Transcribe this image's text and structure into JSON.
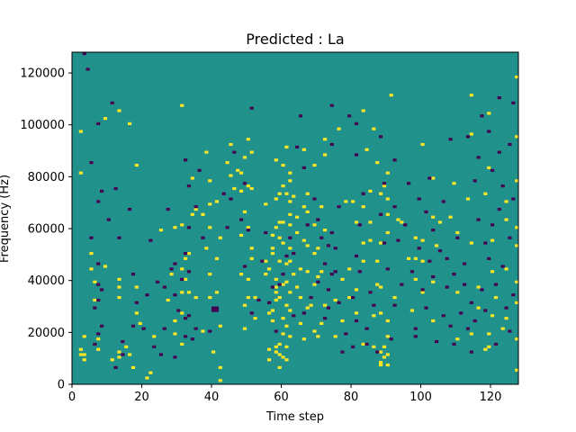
{
  "chart_data": {
    "type": "heatmap",
    "title": "Predicted : La",
    "xlabel": "Time step",
    "ylabel": "Frequency (Hz)",
    "xlim": [
      0,
      128
    ],
    "ylim": [
      0,
      128000
    ],
    "xticks": [
      0,
      20,
      40,
      60,
      80,
      100,
      120
    ],
    "yticks": [
      0,
      20000,
      40000,
      60000,
      80000,
      100000,
      120000
    ],
    "grid": false,
    "legend": "none",
    "values_encoding": "binary spike map: background value 0, high cells 1, low cells -1",
    "colors": {
      "background": "#21918c",
      "high": "#fde725",
      "low": "#440154"
    },
    "high_cells": [
      [
        2,
        97
      ],
      [
        2,
        81
      ],
      [
        2,
        13
      ],
      [
        2,
        11
      ],
      [
        3,
        18
      ],
      [
        3,
        11
      ],
      [
        3,
        9
      ],
      [
        5,
        50
      ],
      [
        5,
        44
      ],
      [
        6,
        39
      ],
      [
        6,
        32
      ],
      [
        7,
        17
      ],
      [
        7,
        13
      ],
      [
        9,
        102
      ],
      [
        9,
        45
      ],
      [
        11,
        9
      ],
      [
        13,
        105
      ],
      [
        13,
        40
      ],
      [
        13,
        37
      ],
      [
        13,
        33
      ],
      [
        13,
        12
      ],
      [
        13,
        10
      ],
      [
        15,
        14
      ],
      [
        16,
        100
      ],
      [
        16,
        11
      ],
      [
        17,
        6
      ],
      [
        18,
        84
      ],
      [
        18,
        37
      ],
      [
        18,
        27
      ],
      [
        19,
        23
      ],
      [
        21,
        2
      ],
      [
        22,
        4
      ],
      [
        23,
        18
      ],
      [
        25,
        59
      ],
      [
        27,
        32
      ],
      [
        28,
        42
      ],
      [
        29,
        60
      ],
      [
        29,
        24
      ],
      [
        29,
        19
      ],
      [
        31,
        107
      ],
      [
        31,
        61
      ],
      [
        31,
        44
      ],
      [
        31,
        35
      ],
      [
        31,
        27
      ],
      [
        31,
        15
      ],
      [
        32,
        48
      ],
      [
        32,
        40
      ],
      [
        33,
        50
      ],
      [
        33,
        35
      ],
      [
        34,
        79
      ],
      [
        34,
        65
      ],
      [
        35,
        67
      ],
      [
        35,
        33
      ],
      [
        37,
        65
      ],
      [
        37,
        20
      ],
      [
        38,
        89
      ],
      [
        38,
        52
      ],
      [
        39,
        78
      ],
      [
        39,
        69
      ],
      [
        39,
        60
      ],
      [
        39,
        42
      ],
      [
        39,
        33
      ],
      [
        40,
        12
      ],
      [
        41,
        70
      ],
      [
        41,
        48
      ],
      [
        41,
        35
      ],
      [
        42,
        56
      ],
      [
        42,
        22
      ],
      [
        42,
        6
      ],
      [
        42,
        1
      ],
      [
        44,
        85
      ],
      [
        45,
        92
      ],
      [
        45,
        80
      ],
      [
        46,
        75
      ],
      [
        47,
        82
      ],
      [
        48,
        81
      ],
      [
        48,
        74
      ],
      [
        48,
        57
      ],
      [
        48,
        42
      ],
      [
        49,
        87
      ],
      [
        49,
        66
      ],
      [
        49,
        30
      ],
      [
        49,
        21
      ],
      [
        50,
        94
      ],
      [
        50,
        76
      ],
      [
        50,
        60
      ],
      [
        50,
        40
      ],
      [
        50,
        33
      ],
      [
        51,
        89
      ],
      [
        51,
        75
      ],
      [
        51,
        52
      ],
      [
        51,
        48
      ],
      [
        52,
        33
      ],
      [
        52,
        25
      ],
      [
        55,
        69
      ],
      [
        55,
        47
      ],
      [
        55,
        42
      ],
      [
        56,
        44
      ],
      [
        56,
        27
      ],
      [
        56,
        13
      ],
      [
        56,
        9
      ],
      [
        57,
        57
      ],
      [
        57,
        52
      ],
      [
        57,
        50
      ],
      [
        57,
        28
      ],
      [
        57,
        24
      ],
      [
        58,
        86
      ],
      [
        58,
        71
      ],
      [
        58,
        60
      ],
      [
        58,
        40
      ],
      [
        58,
        37
      ],
      [
        58,
        35
      ],
      [
        58,
        32
      ],
      [
        58,
        14
      ],
      [
        58,
        12
      ],
      [
        59,
        73
      ],
      [
        59,
        62
      ],
      [
        59,
        56
      ],
      [
        59,
        47
      ],
      [
        59,
        33
      ],
      [
        59,
        15
      ],
      [
        59,
        11
      ],
      [
        59,
        6
      ],
      [
        60,
        84
      ],
      [
        60,
        76
      ],
      [
        60,
        62
      ],
      [
        60,
        54
      ],
      [
        60,
        38
      ],
      [
        60,
        25
      ],
      [
        60,
        19
      ],
      [
        60,
        10
      ],
      [
        61,
        91
      ],
      [
        61,
        73
      ],
      [
        61,
        46
      ],
      [
        61,
        39
      ],
      [
        61,
        30
      ],
      [
        61,
        22
      ],
      [
        61,
        14
      ],
      [
        61,
        9
      ],
      [
        62,
        81
      ],
      [
        62,
        78
      ],
      [
        62,
        70
      ],
      [
        62,
        65
      ],
      [
        62,
        61
      ],
      [
        62,
        52
      ],
      [
        62,
        47
      ],
      [
        62,
        35
      ],
      [
        62,
        28
      ],
      [
        62,
        18
      ],
      [
        63,
        72
      ],
      [
        63,
        42
      ],
      [
        64,
        64
      ],
      [
        64,
        58
      ],
      [
        64,
        37
      ],
      [
        65,
        44
      ],
      [
        65,
        33
      ],
      [
        65,
        23
      ],
      [
        66,
        90
      ],
      [
        66,
        68
      ],
      [
        66,
        55
      ],
      [
        66,
        17
      ],
      [
        67,
        73
      ],
      [
        67,
        66
      ],
      [
        67,
        53
      ],
      [
        67,
        43
      ],
      [
        67,
        29
      ],
      [
        68,
        30
      ],
      [
        69,
        84
      ],
      [
        69,
        61
      ],
      [
        69,
        50
      ],
      [
        69,
        38
      ],
      [
        69,
        20
      ],
      [
        70,
        52
      ],
      [
        70,
        41
      ],
      [
        70,
        18
      ],
      [
        71,
        68
      ],
      [
        71,
        43
      ],
      [
        71,
        23
      ],
      [
        72,
        94
      ],
      [
        72,
        88
      ],
      [
        72,
        59
      ],
      [
        72,
        30
      ],
      [
        75,
        32
      ],
      [
        75,
        18
      ],
      [
        76,
        98
      ],
      [
        77,
        40
      ],
      [
        77,
        24
      ],
      [
        78,
        70
      ],
      [
        79,
        44
      ],
      [
        79,
        33
      ],
      [
        80,
        70
      ],
      [
        81,
        62
      ],
      [
        81,
        36
      ],
      [
        81,
        27
      ],
      [
        83,
        105
      ],
      [
        83,
        68
      ],
      [
        83,
        54
      ],
      [
        83,
        47
      ],
      [
        83,
        15
      ],
      [
        84,
        90
      ],
      [
        85,
        74
      ],
      [
        85,
        62
      ],
      [
        85,
        55
      ],
      [
        86,
        98
      ],
      [
        86,
        26
      ],
      [
        86,
        14
      ],
      [
        87,
        85
      ],
      [
        87,
        47
      ],
      [
        87,
        38
      ],
      [
        88,
        73
      ],
      [
        88,
        54
      ],
      [
        88,
        37
      ],
      [
        88,
        27
      ],
      [
        88,
        12
      ],
      [
        88,
        8
      ],
      [
        88,
        7
      ],
      [
        89,
        76
      ],
      [
        89,
        14
      ],
      [
        89,
        10
      ],
      [
        90,
        81
      ],
      [
        90,
        71
      ],
      [
        90,
        65
      ],
      [
        90,
        58
      ],
      [
        90,
        24
      ],
      [
        90,
        18
      ],
      [
        90,
        11
      ],
      [
        90,
        7
      ],
      [
        91,
        111
      ],
      [
        92,
        33
      ],
      [
        93,
        63
      ],
      [
        94,
        62
      ],
      [
        96,
        48
      ],
      [
        97,
        28
      ],
      [
        98,
        56
      ],
      [
        98,
        48
      ],
      [
        98,
        40
      ],
      [
        100,
        92
      ],
      [
        100,
        55
      ],
      [
        100,
        47
      ],
      [
        100,
        35
      ],
      [
        103,
        79
      ],
      [
        103,
        64
      ],
      [
        103,
        39
      ],
      [
        103,
        24
      ],
      [
        104,
        53
      ],
      [
        105,
        62
      ],
      [
        108,
        64
      ],
      [
        109,
        77
      ],
      [
        110,
        58
      ],
      [
        110,
        35
      ],
      [
        110,
        17
      ],
      [
        113,
        71
      ],
      [
        114,
        111
      ],
      [
        114,
        96
      ],
      [
        114,
        54
      ],
      [
        114,
        19
      ],
      [
        116,
        37
      ],
      [
        116,
        29
      ],
      [
        118,
        73
      ],
      [
        118,
        13
      ],
      [
        119,
        104
      ],
      [
        119,
        83
      ],
      [
        119,
        19
      ],
      [
        119,
        14
      ],
      [
        120,
        55
      ],
      [
        120,
        43
      ],
      [
        120,
        26
      ],
      [
        121,
        33
      ],
      [
        123,
        21
      ],
      [
        124,
        70
      ],
      [
        124,
        63
      ],
      [
        124,
        44
      ],
      [
        124,
        25
      ],
      [
        127,
        118
      ],
      [
        127,
        95
      ],
      [
        127,
        78
      ],
      [
        127,
        60
      ],
      [
        127,
        53
      ],
      [
        127,
        39
      ],
      [
        127,
        31
      ],
      [
        127,
        17
      ],
      [
        127,
        5
      ]
    ],
    "low_cells": [
      [
        3,
        127
      ],
      [
        4,
        121
      ],
      [
        5,
        85
      ],
      [
        5,
        56
      ],
      [
        6,
        29
      ],
      [
        6,
        15
      ],
      [
        7,
        100
      ],
      [
        7,
        70
      ],
      [
        7,
        46
      ],
      [
        7,
        38
      ],
      [
        7,
        32
      ],
      [
        7,
        19
      ],
      [
        8,
        74
      ],
      [
        8,
        36
      ],
      [
        8,
        22
      ],
      [
        10,
        63
      ],
      [
        11,
        108
      ],
      [
        12,
        75
      ],
      [
        12,
        6
      ],
      [
        13,
        56
      ],
      [
        14,
        16
      ],
      [
        14,
        11
      ],
      [
        16,
        67
      ],
      [
        17,
        42
      ],
      [
        17,
        22
      ],
      [
        18,
        31
      ],
      [
        20,
        21
      ],
      [
        21,
        34
      ],
      [
        22,
        55
      ],
      [
        23,
        14
      ],
      [
        24,
        39
      ],
      [
        25,
        11
      ],
      [
        26,
        37
      ],
      [
        26,
        21
      ],
      [
        27,
        67
      ],
      [
        28,
        44
      ],
      [
        29,
        46
      ],
      [
        29,
        34
      ],
      [
        29,
        10
      ],
      [
        30,
        28
      ],
      [
        31,
        40
      ],
      [
        32,
        86
      ],
      [
        32,
        50
      ],
      [
        32,
        25
      ],
      [
        32,
        18
      ],
      [
        33,
        76
      ],
      [
        33,
        60
      ],
      [
        33,
        43
      ],
      [
        33,
        26
      ],
      [
        34,
        17
      ],
      [
        35,
        68
      ],
      [
        35,
        21
      ],
      [
        36,
        82
      ],
      [
        37,
        56
      ],
      [
        39,
        20
      ],
      [
        40,
        28
      ],
      [
        40,
        29
      ],
      [
        41,
        28
      ],
      [
        41,
        29
      ],
      [
        43,
        73
      ],
      [
        44,
        60
      ],
      [
        45,
        71
      ],
      [
        46,
        89
      ],
      [
        48,
        63
      ],
      [
        49,
        77
      ],
      [
        49,
        45
      ],
      [
        50,
        59
      ],
      [
        51,
        106
      ],
      [
        51,
        27
      ],
      [
        53,
        32
      ],
      [
        54,
        47
      ],
      [
        55,
        58
      ],
      [
        56,
        31
      ],
      [
        57,
        37
      ],
      [
        58,
        20
      ],
      [
        59,
        38
      ],
      [
        60,
        42
      ],
      [
        61,
        49
      ],
      [
        62,
        56
      ],
      [
        63,
        50
      ],
      [
        63,
        26
      ],
      [
        64,
        91
      ],
      [
        65,
        103
      ],
      [
        66,
        83
      ],
      [
        66,
        27
      ],
      [
        67,
        61
      ],
      [
        68,
        33
      ],
      [
        69,
        71
      ],
      [
        70,
        63
      ],
      [
        70,
        39
      ],
      [
        71,
        56
      ],
      [
        72,
        46
      ],
      [
        72,
        25
      ],
      [
        73,
        53
      ],
      [
        73,
        36
      ],
      [
        73,
        29
      ],
      [
        74,
        107
      ],
      [
        74,
        92
      ],
      [
        74,
        58
      ],
      [
        74,
        42
      ],
      [
        75,
        52
      ],
      [
        75,
        43
      ],
      [
        76,
        68
      ],
      [
        76,
        31
      ],
      [
        77,
        12
      ],
      [
        78,
        19
      ],
      [
        79,
        103
      ],
      [
        80,
        33
      ],
      [
        80,
        14
      ],
      [
        81,
        100
      ],
      [
        81,
        88
      ],
      [
        81,
        49
      ],
      [
        81,
        24
      ],
      [
        82,
        61
      ],
      [
        82,
        43
      ],
      [
        83,
        73
      ],
      [
        84,
        21
      ],
      [
        84,
        15
      ],
      [
        85,
        35
      ],
      [
        86,
        30
      ],
      [
        87,
        12
      ],
      [
        88,
        95
      ],
      [
        88,
        65
      ],
      [
        89,
        77
      ],
      [
        89,
        54
      ],
      [
        90,
        44
      ],
      [
        91,
        17
      ],
      [
        92,
        86
      ],
      [
        92,
        68
      ],
      [
        92,
        30
      ],
      [
        93,
        55
      ],
      [
        94,
        38
      ],
      [
        95,
        61
      ],
      [
        96,
        77
      ],
      [
        97,
        43
      ],
      [
        98,
        21
      ],
      [
        98,
        18
      ],
      [
        99,
        71
      ],
      [
        99,
        52
      ],
      [
        100,
        36
      ],
      [
        101,
        66
      ],
      [
        101,
        29
      ],
      [
        102,
        79
      ],
      [
        102,
        47
      ],
      [
        103,
        59
      ],
      [
        103,
        41
      ],
      [
        104,
        16
      ],
      [
        105,
        51
      ],
      [
        106,
        70
      ],
      [
        106,
        26
      ],
      [
        107,
        48
      ],
      [
        107,
        37
      ],
      [
        108,
        94
      ],
      [
        108,
        22
      ],
      [
        109,
        42
      ],
      [
        109,
        15
      ],
      [
        110,
        56
      ],
      [
        111,
        27
      ],
      [
        112,
        46
      ],
      [
        112,
        38
      ],
      [
        113,
        95
      ],
      [
        113,
        21
      ],
      [
        114,
        31
      ],
      [
        114,
        12
      ],
      [
        115,
        78
      ],
      [
        115,
        24
      ],
      [
        116,
        87
      ],
      [
        116,
        63
      ],
      [
        117,
        103
      ],
      [
        117,
        36
      ],
      [
        118,
        54
      ],
      [
        118,
        28
      ],
      [
        119,
        97
      ],
      [
        119,
        48
      ],
      [
        120,
        82
      ],
      [
        120,
        61
      ],
      [
        121,
        38
      ],
      [
        121,
        15
      ],
      [
        122,
        110
      ],
      [
        122,
        89
      ],
      [
        122,
        67
      ],
      [
        123,
        76
      ],
      [
        123,
        45
      ],
      [
        124,
        29
      ],
      [
        125,
        92
      ],
      [
        125,
        56
      ],
      [
        125,
        20
      ],
      [
        126,
        108
      ],
      [
        126,
        71
      ],
      [
        126,
        34
      ]
    ]
  }
}
